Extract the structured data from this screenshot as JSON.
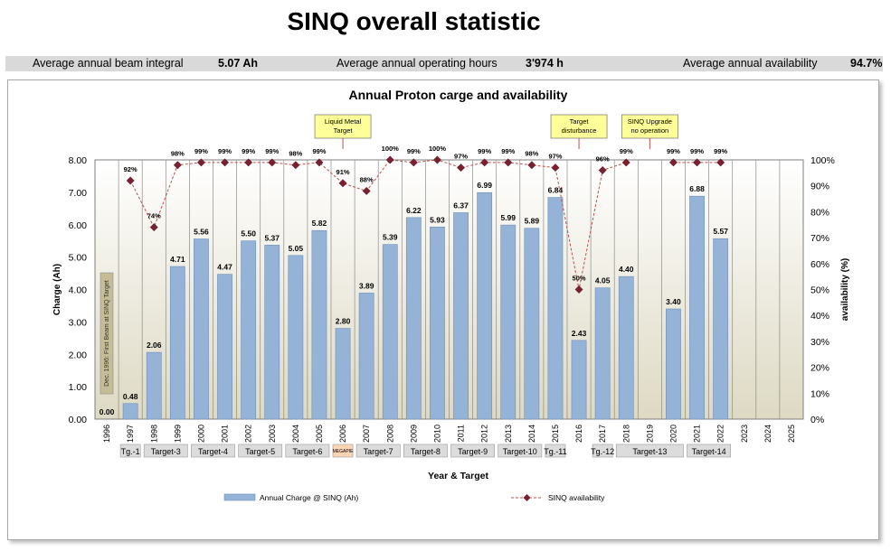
{
  "page_title": "SINQ overall statistic",
  "stats": {
    "beam_label": "Average annual beam integral",
    "beam_value": "5.07 Ah",
    "hours_label": "Average annual operating hours",
    "hours_value": "3'974 h",
    "avail_label": "Average annual availability",
    "avail_value": "94.7%"
  },
  "colors": {
    "bar": "#95b3d7",
    "bar_edge": "#6f8fb8",
    "line": "#c0504d",
    "marker": "#7a2130",
    "callout": "#ffff99",
    "shade_start": "#ffffff",
    "shade_end": "#ddd9c3"
  },
  "chart_data": {
    "type": "bar+line",
    "title": "Annual Proton carge and availability",
    "xlabel": "Year & Target",
    "ylabel": "Charge (Ah)",
    "y2label": "availability (%)",
    "ylim": [
      0,
      8
    ],
    "y2lim": [
      0,
      100
    ],
    "yticks": [
      "0.00",
      "1.00",
      "2.00",
      "3.00",
      "4.00",
      "5.00",
      "6.00",
      "7.00",
      "8.00"
    ],
    "y2ticks": [
      "0%",
      "10%",
      "20%",
      "30%",
      "40%",
      "50%",
      "60%",
      "70%",
      "80%",
      "90%",
      "100%"
    ],
    "categories": [
      "1996",
      "1997",
      "1998",
      "1999",
      "2000",
      "2001",
      "2002",
      "2003",
      "2004",
      "2005",
      "2006",
      "2007",
      "2008",
      "2009",
      "2010",
      "2011",
      "2012",
      "2013",
      "2014",
      "2015",
      "2016",
      "2017",
      "2018",
      "2019",
      "2020",
      "2021",
      "2022",
      "2023",
      "2024",
      "2025"
    ],
    "series": [
      {
        "name": "Annual Charge @ SINQ (Ah)",
        "type": "bar",
        "values": [
          0.0,
          0.48,
          2.06,
          4.71,
          5.56,
          4.47,
          5.5,
          5.37,
          5.05,
          5.82,
          2.8,
          3.89,
          5.39,
          6.22,
          5.93,
          6.37,
          6.99,
          5.99,
          5.89,
          6.84,
          2.43,
          4.05,
          4.4,
          null,
          3.4,
          6.88,
          5.57,
          null,
          null,
          null
        ],
        "labels": [
          "0.00",
          "0.48",
          "2.06",
          "4.71",
          "5.56",
          "4.47",
          "5.50",
          "5.37",
          "5.05",
          "5.82",
          "2.80",
          "3.89",
          "5.39",
          "6.22",
          "5.93",
          "6.37",
          "6.99",
          "5.99",
          "5.89",
          "6.84",
          "2.43",
          "4.05",
          "4.40",
          "",
          "3.40",
          "6.88",
          "5.57",
          "",
          "",
          ""
        ]
      },
      {
        "name": "SINQ availability",
        "type": "line",
        "axis": "right",
        "values": [
          null,
          92,
          74,
          98,
          99,
          99,
          99,
          99,
          98,
          99,
          91,
          88,
          100,
          99,
          100,
          97,
          99,
          99,
          98,
          97,
          50,
          96,
          99,
          null,
          99,
          99,
          99,
          null,
          null,
          null
        ],
        "labels": [
          "",
          "92%",
          "74%",
          "98%",
          "99%",
          "99%",
          "99%",
          "99%",
          "98%",
          "99%",
          "91%",
          "88%",
          "100%",
          "99%",
          "100%",
          "97%",
          "99%",
          "99%",
          "98%",
          "97%",
          "50%",
          "96%",
          "99%",
          "",
          "99%",
          "99%",
          "99%",
          "",
          "",
          ""
        ]
      }
    ],
    "targets": [
      {
        "label": "Tg.-1",
        "from": 1,
        "to": 2
      },
      {
        "label": "Target-3",
        "from": 2,
        "to": 4
      },
      {
        "label": "Target-4",
        "from": 4,
        "to": 6
      },
      {
        "label": "Target-5",
        "from": 6,
        "to": 8
      },
      {
        "label": "Target-6",
        "from": 8,
        "to": 10
      },
      {
        "label": "MEGAPIE",
        "from": 10,
        "to": 11,
        "orange": true
      },
      {
        "label": "Target-7",
        "from": 11,
        "to": 13
      },
      {
        "label": "Target-8",
        "from": 13,
        "to": 15
      },
      {
        "label": "Target-9",
        "from": 15,
        "to": 17
      },
      {
        "label": "Target-10",
        "from": 17,
        "to": 19
      },
      {
        "label": "Tg.-11",
        "from": 19,
        "to": 20
      },
      {
        "label": "Tg.-12",
        "from": 21,
        "to": 22
      },
      {
        "label": "Target-13",
        "from": 22,
        "to": 25
      },
      {
        "label": "Target-14",
        "from": 25,
        "to": 27
      }
    ],
    "annotations": [
      {
        "text": [
          "Liquid Metal",
          "Target"
        ],
        "index": 10
      },
      {
        "text": [
          "Target",
          "disturbance"
        ],
        "index": 20
      },
      {
        "text": [
          "SINQ Upgrade",
          "no operation"
        ],
        "index": 23
      }
    ],
    "first_beam_note": "Dec. 1996: First Beam at SINQ Target",
    "grid": "vertical"
  }
}
